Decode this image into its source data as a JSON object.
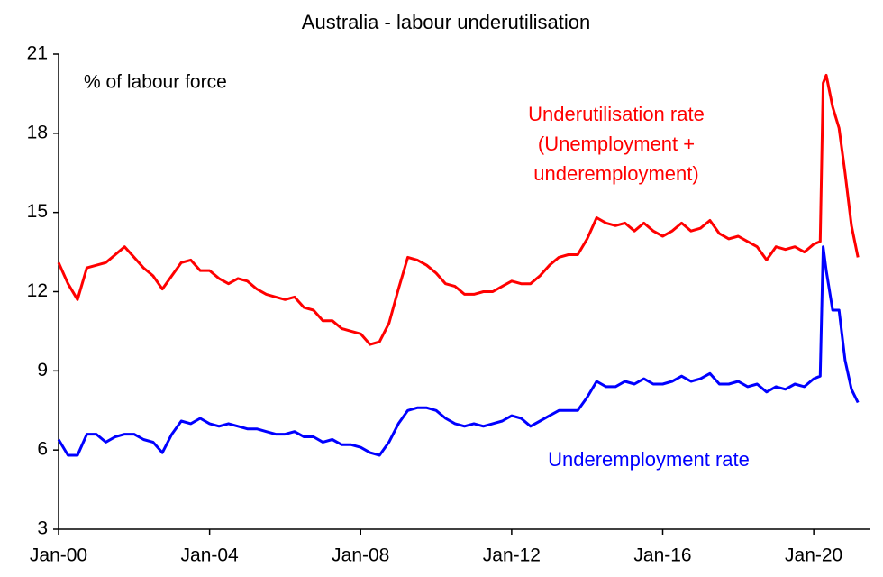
{
  "chart_data": {
    "type": "line",
    "title": "Australia - labour underutilisation",
    "y_label": "% of labour force",
    "annotation": [
      "(Unemployment +",
      "underemployment)"
    ],
    "xlim": [
      2000,
      2021.5
    ],
    "xticks": [
      {
        "value": 2000,
        "label": "Jan-00"
      },
      {
        "value": 2004,
        "label": "Jan-04"
      },
      {
        "value": 2008,
        "label": "Jan-08"
      },
      {
        "value": 2012,
        "label": "Jan-12"
      },
      {
        "value": 2016,
        "label": "Jan-16"
      },
      {
        "value": 2020,
        "label": "Jan-20"
      }
    ],
    "ylim": [
      3,
      21
    ],
    "yticks": [
      3,
      6,
      9,
      12,
      15,
      18,
      21
    ],
    "grid": false,
    "x": [
      2000,
      2000.25,
      2000.5,
      2000.75,
      2001,
      2001.25,
      2001.5,
      2001.75,
      2002,
      2002.25,
      2002.5,
      2002.75,
      2003,
      2003.25,
      2003.5,
      2003.75,
      2004,
      2004.25,
      2004.5,
      2004.75,
      2005,
      2005.25,
      2005.5,
      2005.75,
      2006,
      2006.25,
      2006.5,
      2006.75,
      2007,
      2007.25,
      2007.5,
      2007.75,
      2008,
      2008.25,
      2008.5,
      2008.75,
      2009,
      2009.25,
      2009.5,
      2009.75,
      2010,
      2010.25,
      2010.5,
      2010.75,
      2011,
      2011.25,
      2011.5,
      2011.75,
      2012,
      2012.25,
      2012.5,
      2012.75,
      2013,
      2013.25,
      2013.5,
      2013.75,
      2014,
      2014.25,
      2014.5,
      2014.75,
      2015,
      2015.25,
      2015.5,
      2015.75,
      2016,
      2016.25,
      2016.5,
      2016.75,
      2017,
      2017.25,
      2017.5,
      2017.75,
      2018,
      2018.25,
      2018.5,
      2018.75,
      2019,
      2019.25,
      2019.5,
      2019.75,
      2020,
      2020.17,
      2020.25,
      2020.33,
      2020.5,
      2020.67,
      2020.83,
      2021,
      2021.17
    ],
    "series": [
      {
        "name": "Underutilisation rate",
        "color": "#ff0000",
        "values": [
          13.1,
          12.3,
          11.7,
          12.9,
          13.0,
          13.1,
          13.4,
          13.7,
          13.3,
          12.9,
          12.6,
          12.1,
          12.6,
          13.1,
          13.2,
          12.8,
          12.8,
          12.5,
          12.3,
          12.5,
          12.4,
          12.1,
          11.9,
          11.8,
          11.7,
          11.8,
          11.4,
          11.3,
          10.9,
          10.9,
          10.6,
          10.5,
          10.4,
          10.0,
          10.1,
          10.8,
          12.1,
          13.3,
          13.2,
          13.0,
          12.7,
          12.3,
          12.2,
          11.9,
          11.9,
          12.0,
          12.0,
          12.2,
          12.4,
          12.3,
          12.3,
          12.6,
          13.0,
          13.3,
          13.4,
          13.4,
          14.0,
          14.8,
          14.6,
          14.5,
          14.6,
          14.3,
          14.6,
          14.3,
          14.1,
          14.3,
          14.6,
          14.3,
          14.4,
          14.7,
          14.2,
          14.0,
          14.1,
          13.9,
          13.7,
          13.2,
          13.7,
          13.6,
          13.7,
          13.5,
          13.8,
          13.9,
          19.9,
          20.2,
          19.0,
          18.2,
          16.5,
          14.5,
          13.3
        ]
      },
      {
        "name": "Underemployment  rate",
        "color": "#0000ff",
        "values": [
          6.4,
          5.8,
          5.8,
          6.6,
          6.6,
          6.3,
          6.5,
          6.6,
          6.6,
          6.4,
          6.3,
          5.9,
          6.6,
          7.1,
          7.0,
          7.2,
          7.0,
          6.9,
          7.0,
          6.9,
          6.8,
          6.8,
          6.7,
          6.6,
          6.6,
          6.7,
          6.5,
          6.5,
          6.3,
          6.4,
          6.2,
          6.2,
          6.1,
          5.9,
          5.8,
          6.3,
          7.0,
          7.5,
          7.6,
          7.6,
          7.5,
          7.2,
          7.0,
          6.9,
          7.0,
          6.9,
          7.0,
          7.1,
          7.3,
          7.2,
          6.9,
          7.1,
          7.3,
          7.5,
          7.5,
          7.5,
          8.0,
          8.6,
          8.4,
          8.4,
          8.6,
          8.5,
          8.7,
          8.5,
          8.5,
          8.6,
          8.8,
          8.6,
          8.7,
          8.9,
          8.5,
          8.5,
          8.6,
          8.4,
          8.5,
          8.2,
          8.4,
          8.3,
          8.5,
          8.4,
          8.7,
          8.8,
          13.7,
          12.8,
          11.3,
          11.3,
          9.4,
          8.3,
          7.8
        ]
      }
    ]
  }
}
